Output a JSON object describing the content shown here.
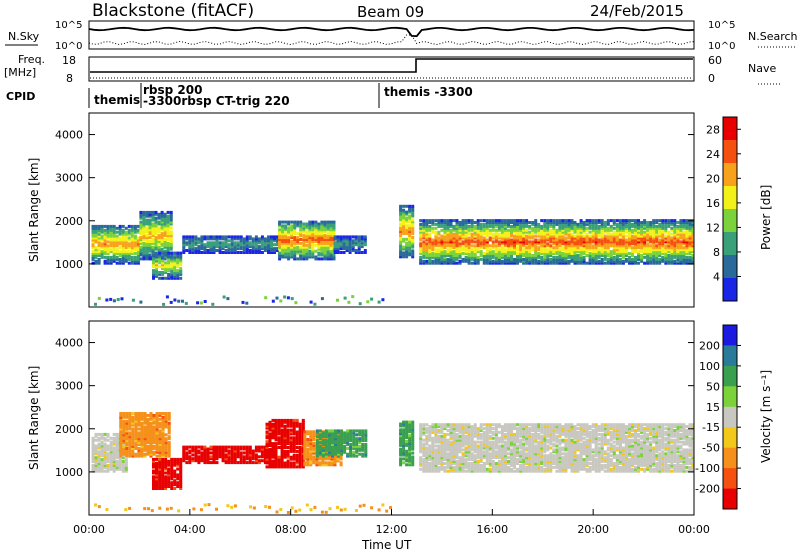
{
  "header": {
    "title": "Blackstone (fitACF)",
    "beam": "Beam 09",
    "date": "24/Feb/2015"
  },
  "noise_panel": {
    "left_label": "N.Sky",
    "right_label": "N.Search",
    "left_ticks": [
      "10^5",
      "10^0"
    ],
    "right_ticks": [
      "10^5",
      "10^0"
    ]
  },
  "freq_panel": {
    "left_label_1": "Freq.",
    "left_label_2": "[MHz]",
    "right_label": "Nave",
    "left_ticks": [
      "18",
      "8"
    ],
    "right_ticks": [
      "60",
      "0"
    ]
  },
  "cpid_panel": {
    "label": "CPID",
    "segments": [
      {
        "text": "themis",
        "start_hour": 0.1
      },
      {
        "text": "rbsp 200",
        "start_hour": 2.0
      },
      {
        "text": "-3300rbsp CT-trig 220",
        "start_hour": 2.0
      },
      {
        "text": "themis -3300",
        "start_hour": 12.0
      }
    ]
  },
  "chart_data": [
    {
      "type": "heatmap",
      "name": "power",
      "ylabel": "Slant Range [km]",
      "xlabel": "Time UT",
      "xlim_hours": [
        0,
        24
      ],
      "ylim": [
        0,
        4500
      ],
      "yticks": [
        "1000",
        "2000",
        "3000",
        "4000"
      ],
      "colorbar_label": "Power [dB]",
      "colorbar_ticks": [
        "4",
        "8",
        "12",
        "16",
        "20",
        "24",
        "28"
      ],
      "colorbar_range": [
        0,
        30
      ],
      "colors": [
        "#1a26e6",
        "#2a6a9a",
        "#3aa07a",
        "#7bd23a",
        "#f2f21a",
        "#f7a21a",
        "#f55010",
        "#e80000"
      ],
      "echo_bands": [
        {
          "t0": 0.1,
          "t1": 2.0,
          "r_center": 1500,
          "r_half_width": 450,
          "peak": 22
        },
        {
          "t0": 2.0,
          "t1": 3.3,
          "r_center": 1700,
          "r_half_width": 550,
          "peak": 20
        },
        {
          "t0": 2.5,
          "t1": 3.7,
          "r_center": 1000,
          "r_half_width": 300,
          "peak": 18
        },
        {
          "t0": 3.7,
          "t1": 7.5,
          "r_center": 1500,
          "r_half_width": 200,
          "peak": 10
        },
        {
          "t0": 7.5,
          "t1": 9.7,
          "r_center": 1600,
          "r_half_width": 450,
          "peak": 24
        },
        {
          "t0": 9.7,
          "t1": 11.0,
          "r_center": 1500,
          "r_half_width": 200,
          "peak": 9
        },
        {
          "t0": 12.3,
          "t1": 12.8,
          "r_center": 1800,
          "r_half_width": 600,
          "peak": 22
        },
        {
          "t0": 13.1,
          "t1": 24.0,
          "r_center": 1550,
          "r_half_width": 500,
          "peak": 25
        }
      ]
    },
    {
      "type": "heatmap",
      "name": "velocity",
      "ylabel": "Slant Range [km]",
      "xlabel": "Time UT",
      "xlim_hours": [
        0,
        24
      ],
      "ylim": [
        0,
        4500
      ],
      "yticks": [
        "1000",
        "2000",
        "3000",
        "4000"
      ],
      "xticks": [
        "00:00",
        "04:00",
        "08:00",
        "12:00",
        "16:00",
        "20:00",
        "00:00"
      ],
      "colorbar_label": "Velocity [m s⁻¹]",
      "colorbar_ticks": [
        "200",
        "100",
        "50",
        "15",
        "-15",
        "-50",
        "-100",
        "-200"
      ],
      "colors": [
        "#1a1ae0",
        "#2a7a9a",
        "#3aa050",
        "#7bd23a",
        "#c8c8c0",
        "#f2c81a",
        "#f5901a",
        "#f55010",
        "#e80000"
      ],
      "echo_bands": [
        {
          "t0": 0.1,
          "t1": 1.5,
          "r_center": 1500,
          "r_half_width": 450,
          "vel": "gray"
        },
        {
          "t0": 1.2,
          "t1": 3.2,
          "r_center": 1900,
          "r_half_width": 500,
          "vel": "orange"
        },
        {
          "t0": 2.5,
          "t1": 3.7,
          "r_center": 1000,
          "r_half_width": 350,
          "vel": "red"
        },
        {
          "t0": 3.7,
          "t1": 7.0,
          "r_center": 1450,
          "r_half_width": 200,
          "vel": "red"
        },
        {
          "t0": 7.0,
          "t1": 8.5,
          "r_center": 1700,
          "r_half_width": 550,
          "vel": "red"
        },
        {
          "t0": 8.5,
          "t1": 10.0,
          "r_center": 1600,
          "r_half_width": 400,
          "vel": "orange"
        },
        {
          "t0": 9.0,
          "t1": 11.0,
          "r_center": 1700,
          "r_half_width": 300,
          "vel": "green"
        },
        {
          "t0": 12.3,
          "t1": 12.8,
          "r_center": 1700,
          "r_half_width": 500,
          "vel": "green"
        },
        {
          "t0": 13.1,
          "t1": 24.0,
          "r_center": 1600,
          "r_half_width": 550,
          "vel": "gray"
        }
      ]
    }
  ]
}
